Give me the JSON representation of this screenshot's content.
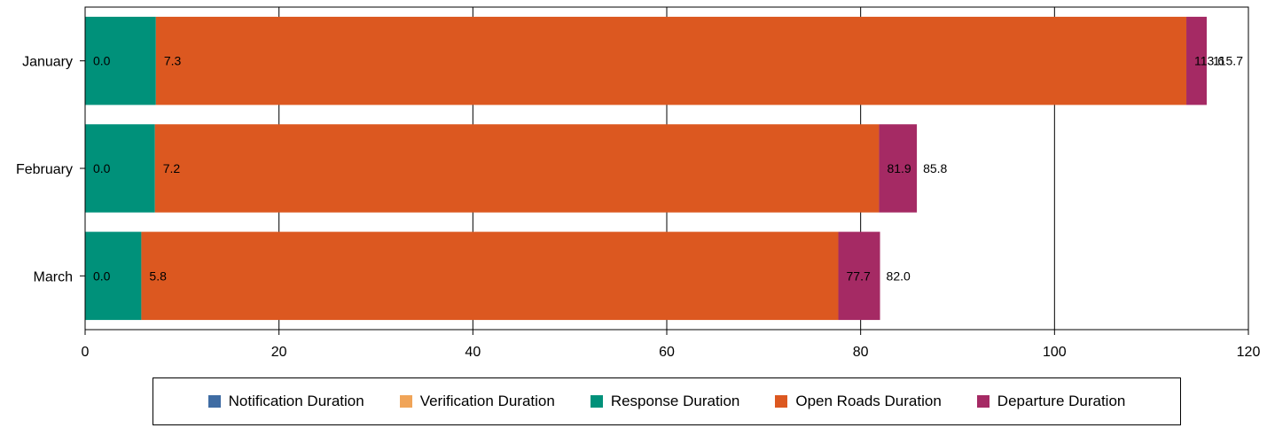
{
  "chart_data": {
    "type": "bar",
    "orientation": "horizontal",
    "stacked": true,
    "categories": [
      "January",
      "February",
      "March"
    ],
    "series": [
      {
        "name": "Notification Duration",
        "color": "#3f6ca3",
        "values": [
          0.0,
          0.0,
          0.0
        ],
        "labels": [
          "0.0",
          "0.0",
          "0.0"
        ]
      },
      {
        "name": "Verification Duration",
        "color": "#f0a458",
        "values": [
          0.0,
          0.0,
          0.0
        ],
        "labels": [
          "0.0",
          "0.0",
          "0.0"
        ]
      },
      {
        "name": "Response Duration",
        "color": "#00917a",
        "values": [
          7.3,
          7.2,
          5.8
        ],
        "labels": [
          "0.0",
          "0.0",
          "0.0"
        ]
      },
      {
        "name": "Open Roads Duration",
        "color": "#dc5820",
        "values": [
          106.3,
          74.7,
          71.9
        ],
        "labels": [
          "7.3",
          "7.2",
          "5.8"
        ]
      },
      {
        "name": "Departure Duration",
        "color": "#a52a64",
        "values": [
          2.1,
          3.9,
          4.3
        ],
        "labels": [
          "113.6",
          "81.9",
          "77.7"
        ]
      }
    ],
    "totals": [
      "115.7",
      "85.8",
      "82.0"
    ],
    "xlim": [
      0,
      120
    ],
    "xticks": [
      "0",
      "20",
      "40",
      "60",
      "80",
      "100",
      "120"
    ],
    "grid": true,
    "legend_position": "bottom"
  }
}
